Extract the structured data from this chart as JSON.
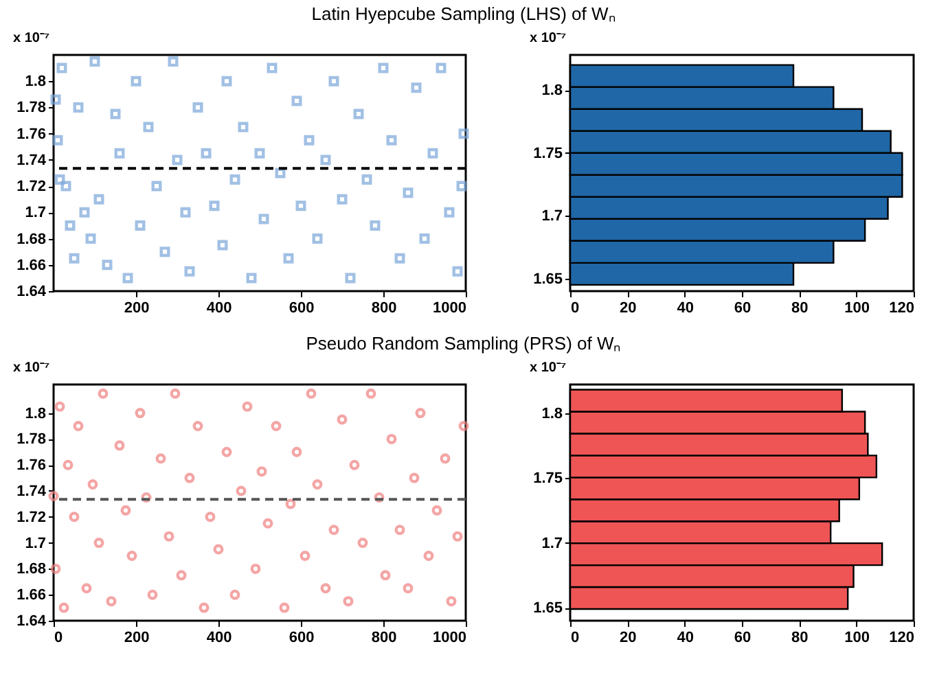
{
  "chart_data": [
    {
      "type": "scatter",
      "title": "Latin Hyepcube Sampling (LHS) of Wₙ",
      "ylabel": "x 10⁻⁷",
      "marker": "square",
      "xlim": [
        0,
        1000
      ],
      "xticks": [
        200,
        400,
        600,
        800,
        1000
      ],
      "ylim": [
        1.64,
        1.82
      ],
      "yticks": [
        1.64,
        1.66,
        1.68,
        1.7,
        1.72,
        1.74,
        1.76,
        1.78,
        1.8
      ],
      "series": [
        {
          "color": "#7aa6da",
          "x": [
            5,
            10,
            15,
            20,
            30,
            40,
            50,
            60,
            75,
            90,
            100,
            110,
            130,
            150,
            160,
            180,
            200,
            210,
            230,
            250,
            270,
            290,
            300,
            320,
            330,
            350,
            370,
            390,
            410,
            420,
            440,
            460,
            480,
            500,
            510,
            530,
            550,
            570,
            590,
            600,
            620,
            640,
            660,
            680,
            700,
            720,
            740,
            760,
            780,
            800,
            820,
            840,
            860,
            880,
            900,
            920,
            940,
            960,
            980,
            995,
            990
          ],
          "values": [
            1.786,
            1.755,
            1.725,
            1.81,
            1.72,
            1.69,
            1.665,
            1.78,
            1.7,
            1.68,
            1.815,
            1.71,
            1.66,
            1.775,
            1.745,
            1.65,
            1.8,
            1.69,
            1.765,
            1.72,
            1.67,
            1.815,
            1.74,
            1.7,
            1.655,
            1.78,
            1.745,
            1.705,
            1.675,
            1.8,
            1.725,
            1.765,
            1.65,
            1.745,
            1.695,
            1.81,
            1.73,
            1.665,
            1.785,
            1.705,
            1.755,
            1.68,
            1.74,
            1.8,
            1.71,
            1.65,
            1.775,
            1.725,
            1.69,
            1.81,
            1.755,
            1.665,
            1.715,
            1.795,
            1.68,
            1.745,
            1.81,
            1.7,
            1.655,
            1.76,
            1.72
          ]
        }
      ],
      "ref_lines": [
        {
          "axis": "y",
          "value": 1.7335,
          "color": "#000000",
          "line_style": "dashed"
        }
      ]
    },
    {
      "type": "histogram",
      "orientation": "horizontal",
      "ylabel": "x 10⁻⁷",
      "color": "#1f67a6",
      "bins": [
        1.645,
        1.6625,
        1.68,
        1.6975,
        1.715,
        1.7325,
        1.75,
        1.7675,
        1.785,
        1.8025,
        1.82
      ],
      "values": [
        78,
        92,
        103,
        111,
        116,
        116,
        112,
        102,
        92,
        78
      ],
      "xlim": [
        0,
        120
      ],
      "xticks": [
        0,
        20,
        40,
        60,
        80,
        100,
        120
      ],
      "ylim": [
        1.64,
        1.828
      ],
      "yticks": [
        1.65,
        1.7,
        1.75,
        1.8
      ]
    },
    {
      "type": "scatter",
      "title": "Pseudo Random Sampling (PRS) of Wₙ",
      "ylabel": "x 10⁻⁷",
      "marker": "circle",
      "xlim": [
        0,
        1000
      ],
      "xticks": [
        0,
        200,
        400,
        600,
        800,
        1000
      ],
      "ylim": [
        1.64,
        1.822
      ],
      "yticks": [
        1.64,
        1.66,
        1.68,
        1.7,
        1.72,
        1.74,
        1.76,
        1.78,
        1.8
      ],
      "series": [
        {
          "color": "#f08080",
          "x": [
            0,
            5,
            15,
            25,
            35,
            50,
            60,
            80,
            95,
            110,
            120,
            140,
            160,
            175,
            190,
            210,
            225,
            240,
            260,
            280,
            295,
            310,
            330,
            350,
            365,
            380,
            400,
            420,
            440,
            455,
            470,
            490,
            505,
            520,
            540,
            560,
            575,
            590,
            610,
            625,
            640,
            660,
            680,
            700,
            715,
            730,
            750,
            770,
            790,
            805,
            820,
            840,
            860,
            875,
            890,
            910,
            930,
            950,
            965,
            980,
            995
          ],
          "values": [
            1.736,
            1.68,
            1.805,
            1.65,
            1.76,
            1.72,
            1.79,
            1.665,
            1.745,
            1.7,
            1.815,
            1.655,
            1.775,
            1.725,
            1.69,
            1.8,
            1.735,
            1.66,
            1.765,
            1.705,
            1.815,
            1.675,
            1.75,
            1.79,
            1.65,
            1.72,
            1.695,
            1.77,
            1.66,
            1.74,
            1.805,
            1.68,
            1.755,
            1.715,
            1.79,
            1.65,
            1.73,
            1.77,
            1.69,
            1.815,
            1.745,
            1.665,
            1.71,
            1.795,
            1.655,
            1.76,
            1.7,
            1.815,
            1.735,
            1.675,
            1.78,
            1.71,
            1.665,
            1.75,
            1.8,
            1.69,
            1.725,
            1.765,
            1.655,
            1.705,
            1.79
          ]
        }
      ],
      "ref_lines": [
        {
          "axis": "y",
          "value": 1.7335,
          "color": "#555555",
          "line_style": "dashed"
        }
      ]
    },
    {
      "type": "histogram",
      "orientation": "horizontal",
      "ylabel": "x 10⁻⁷",
      "color": "#ef5555",
      "bins": [
        1.649,
        1.6659,
        1.6828,
        1.6997,
        1.7166,
        1.7335,
        1.7504,
        1.7673,
        1.7842,
        1.8011,
        1.818
      ],
      "values": [
        97,
        99,
        109,
        91,
        94,
        101,
        107,
        104,
        103,
        95
      ],
      "xlim": [
        0,
        120
      ],
      "xticks": [
        0,
        20,
        40,
        60,
        80,
        100,
        120
      ],
      "ylim": [
        1.64,
        1.822
      ],
      "yticks": [
        1.65,
        1.7,
        1.75,
        1.8
      ]
    }
  ]
}
